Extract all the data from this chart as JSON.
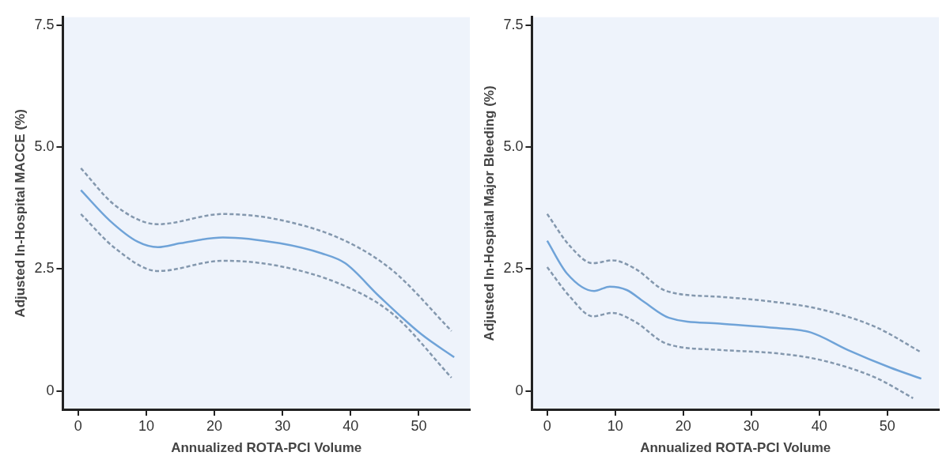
{
  "chart_data": [
    {
      "type": "line",
      "ylabel": "Adjusted In-Hospital MACCE (%)",
      "xlabel": "Annualized ROTA-PCI Volume",
      "xlim": [
        -2.25,
        57.5
      ],
      "ylim": [
        -0.38,
        7.67
      ],
      "xticks": [
        0,
        10,
        20,
        30,
        40,
        50
      ],
      "yticks": [
        0,
        {
          "value": 2.5,
          "label": "2.5"
        },
        {
          "value": 5,
          "label": "5.0"
        },
        {
          "value": 7.5,
          "label": "7.5"
        }
      ],
      "grid": false,
      "legend": false,
      "marker": "none",
      "series": [
        {
          "color": "#6fa3d8",
          "line_style": "solid",
          "x": [
            0.4,
            4.6,
            8.75,
            11.7,
            15,
            21.25,
            29.6,
            35.8,
            39.2,
            44.2,
            50.4,
            55.2
          ],
          "values": [
            4.12,
            3.5,
            3.06,
            2.95,
            3.03,
            3.15,
            3.03,
            2.82,
            2.62,
            1.94,
            1.16,
            0.69
          ]
        },
        {
          "color": "#8498ae",
          "line_style": "dashed",
          "x": [
            0.4,
            5.4,
            11.7,
            21.25,
            29.6,
            39.2,
            46.25,
            54.8
          ],
          "values": [
            4.57,
            3.81,
            3.42,
            3.63,
            3.51,
            3.08,
            2.46,
            1.23
          ]
        },
        {
          "color": "#8498ae",
          "line_style": "dashed",
          "x": [
            0.4,
            5.4,
            11.7,
            21.25,
            29.6,
            39.2,
            46.25,
            54.8
          ],
          "values": [
            3.63,
            2.93,
            2.46,
            2.67,
            2.56,
            2.15,
            1.57,
            0.27
          ]
        }
      ]
    },
    {
      "type": "line",
      "ylabel": "Adjusted In-Hospital Major Bleeding (%)",
      "xlabel": "Annualized ROTA-PCI Volume",
      "xlim": [
        -2.25,
        57.6
      ],
      "ylim": [
        -0.38,
        7.67
      ],
      "xticks": [
        0,
        10,
        20,
        30,
        40,
        50
      ],
      "yticks": [
        0,
        {
          "value": 2.5,
          "label": "2.5"
        },
        {
          "value": 5,
          "label": "5.0"
        },
        {
          "value": 7.5,
          "label": "7.5"
        }
      ],
      "grid": false,
      "legend": false,
      "marker": "none",
      "series": [
        {
          "color": "#6fa3d8",
          "line_style": "solid",
          "x": [
            0,
            2.9,
            6.9,
            9.2,
            11.7,
            14.2,
            17.9,
            25.4,
            33.75,
            38.75,
            44.2,
            50.4,
            55
          ],
          "values": [
            3.08,
            2.41,
            2.05,
            2.14,
            2.07,
            1.83,
            1.5,
            1.38,
            1.29,
            1.2,
            0.84,
            0.48,
            0.25
          ]
        },
        {
          "color": "#8498ae",
          "line_style": "dashed",
          "x": [
            0,
            3.3,
            6.7,
            9.6,
            12.9,
            17.5,
            25.4,
            33.75,
            40,
            48.3,
            55
          ],
          "values": [
            3.63,
            2.98,
            2.62,
            2.68,
            2.51,
            2.05,
            1.93,
            1.82,
            1.68,
            1.31,
            0.79
          ]
        },
        {
          "color": "#8498ae",
          "line_style": "dashed",
          "x": [
            0,
            3.3,
            6.7,
            9.6,
            12.9,
            17.5,
            25.4,
            33.75,
            40,
            48.3,
            53.8
          ],
          "values": [
            2.54,
            1.94,
            1.53,
            1.6,
            1.42,
            0.97,
            0.84,
            0.77,
            0.64,
            0.27,
            -0.15
          ]
        }
      ]
    }
  ]
}
